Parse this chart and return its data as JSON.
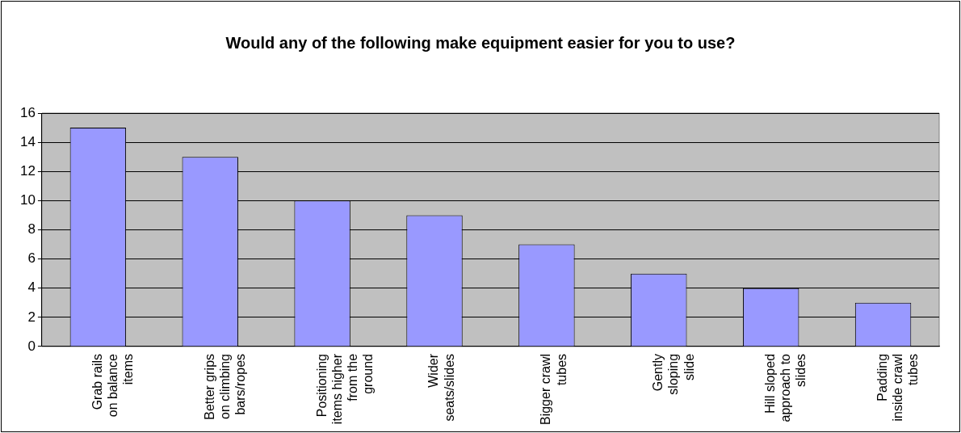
{
  "chart_data": {
    "type": "bar",
    "title": "Would any of the following make equipment easier for you to use?",
    "categories": [
      "Grab rails on balance items",
      "Better grips on climbing bars/ropes",
      "Positioning items higher from the ground",
      "Wider seats/slides",
      "Bigger crawl tubes",
      "Gently sloping slide",
      "Hill sloped approach to slides",
      "Padding inside crawl tubes"
    ],
    "values": [
      15,
      13,
      10,
      9,
      7,
      5,
      4,
      3
    ],
    "color": "#9999ff",
    "ylim": [
      0,
      16
    ],
    "yticks": [
      0,
      2,
      4,
      6,
      8,
      10,
      12,
      14,
      16
    ],
    "grid": "y",
    "legend": false
  }
}
